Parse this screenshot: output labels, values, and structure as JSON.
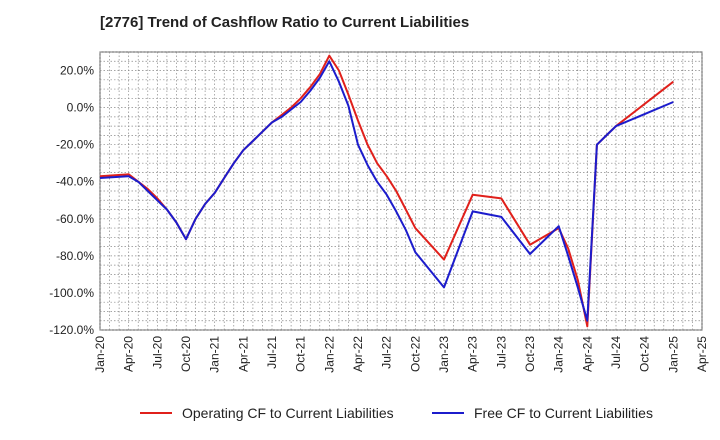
{
  "chart_data": {
    "type": "line",
    "title": "[2776]  Trend of Cashflow Ratio to Current Liabilities",
    "xlabel": "",
    "ylabel": "",
    "ylim": [
      -120,
      30
    ],
    "yticks": [
      "20.0%",
      "0.0%",
      "-20.0%",
      "-40.0%",
      "-60.0%",
      "-80.0%",
      "-100.0%",
      "-120.0%"
    ],
    "ytick_values": [
      20,
      0,
      -20,
      -40,
      -60,
      -80,
      -100,
      -120
    ],
    "xticks": [
      "Jan-20",
      "Apr-20",
      "Jul-20",
      "Oct-20",
      "Jan-21",
      "Apr-21",
      "Jul-21",
      "Oct-21",
      "Jan-22",
      "Apr-22",
      "Jul-22",
      "Oct-22",
      "Jan-23",
      "Apr-23",
      "Jul-23",
      "Oct-23",
      "Jan-24",
      "Apr-24",
      "Jul-24",
      "Oct-24",
      "Jan-25",
      "Apr-25"
    ],
    "grid": true,
    "legend_position": "bottom",
    "series": [
      {
        "name": "Operating CF to Current Liabilities",
        "color": "#e0201b",
        "x": [
          "Jan-20",
          "Apr-20",
          "May-20",
          "Jun-20",
          "Jul-20",
          "Aug-20",
          "Sep-20",
          "Oct-20",
          "Nov-20",
          "Dec-20",
          "Jan-21",
          "Feb-21",
          "Mar-21",
          "Apr-21",
          "May-21",
          "Jun-21",
          "Jul-21",
          "Aug-21",
          "Sep-21",
          "Oct-21",
          "Nov-21",
          "Dec-21",
          "Jan-22",
          "Feb-22",
          "Mar-22",
          "Apr-22",
          "May-22",
          "Jun-22",
          "Jul-22",
          "Aug-22",
          "Sep-22",
          "Oct-22",
          "Jan-23",
          "Apr-23",
          "Jul-23",
          "Oct-23",
          "Jan-24",
          "Feb-24",
          "Mar-24",
          "Apr-24",
          "May-24",
          "Jun-24",
          "Jul-24",
          "Jan-25"
        ],
        "values": [
          -37,
          -36,
          -40,
          -44,
          -49,
          -55,
          -62,
          -71,
          -60,
          -52,
          -46,
          -38,
          -30,
          -23,
          -18,
          -13,
          -8,
          -4,
          0,
          5,
          11,
          18,
          28,
          20,
          7,
          -7,
          -20,
          -30,
          -37,
          -45,
          -55,
          -65,
          -82,
          -47,
          -49,
          -74,
          -65,
          -76,
          -93,
          -118,
          -20,
          -15,
          -10,
          14
        ]
      },
      {
        "name": "Free CF to Current Liabilities",
        "color": "#1c1ccc",
        "x": [
          "Jan-20",
          "Apr-20",
          "May-20",
          "Jun-20",
          "Jul-20",
          "Aug-20",
          "Sep-20",
          "Oct-20",
          "Nov-20",
          "Dec-20",
          "Jan-21",
          "Feb-21",
          "Mar-21",
          "Apr-21",
          "May-21",
          "Jun-21",
          "Jul-21",
          "Aug-21",
          "Sep-21",
          "Oct-21",
          "Nov-21",
          "Dec-21",
          "Jan-22",
          "Feb-22",
          "Mar-22",
          "Apr-22",
          "May-22",
          "Jun-22",
          "Jul-22",
          "Aug-22",
          "Sep-22",
          "Oct-22",
          "Jan-23",
          "Apr-23",
          "Jul-23",
          "Oct-23",
          "Jan-24",
          "Feb-24",
          "Mar-24",
          "Apr-24",
          "May-24",
          "Jun-24",
          "Jul-24",
          "Jan-25"
        ],
        "values": [
          -38,
          -37,
          -40,
          -45,
          -50,
          -55,
          -62,
          -71,
          -60,
          -52,
          -46,
          -38,
          -30,
          -23,
          -18,
          -13,
          -8,
          -5,
          -1,
          3,
          9,
          16,
          25,
          14,
          1,
          -20,
          -31,
          -40,
          -47,
          -56,
          -66,
          -78,
          -97,
          -56,
          -59,
          -79,
          -64,
          -80,
          -97,
          -115,
          -20,
          -15,
          -10,
          3
        ]
      }
    ]
  }
}
